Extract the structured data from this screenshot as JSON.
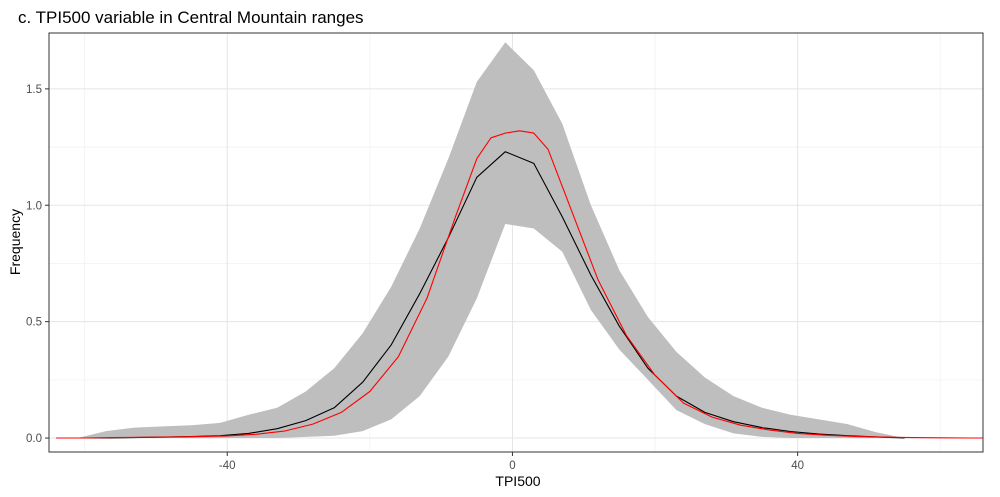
{
  "chart_data": {
    "type": "line",
    "title": "c. TPI500 variable in Central Mountain ranges",
    "xlabel": "TPI500",
    "ylabel": "Frequency",
    "xlim": [
      -65,
      66
    ],
    "ylim": [
      -0.06,
      1.74
    ],
    "x_ticks": [
      -40,
      0,
      40
    ],
    "x_tick_labels": [
      "-40",
      "0",
      "40"
    ],
    "y_ticks": [
      0.0,
      0.5,
      1.0,
      1.5
    ],
    "y_tick_labels": [
      "0.0",
      "0.5",
      "1.0",
      "1.5"
    ],
    "x_minor_ticks": [
      -60,
      -20,
      20,
      60
    ],
    "y_minor_ticks": [
      0.25,
      0.75,
      1.25
    ],
    "grid": true,
    "legend": "none",
    "band": {
      "color": "#bebebe",
      "x": [
        -61,
        -57,
        -53,
        -49,
        -45,
        -41,
        -37,
        -33,
        -29,
        -25,
        -21,
        -17,
        -13,
        -9,
        -5,
        -1,
        3,
        7,
        11,
        15,
        19,
        23,
        27,
        31,
        35,
        39,
        43,
        47,
        51,
        55
      ],
      "upper": [
        0.0,
        0.03,
        0.045,
        0.05,
        0.055,
        0.065,
        0.1,
        0.13,
        0.2,
        0.3,
        0.45,
        0.65,
        0.9,
        1.2,
        1.53,
        1.7,
        1.58,
        1.35,
        1.0,
        0.72,
        0.52,
        0.37,
        0.26,
        0.18,
        0.13,
        0.1,
        0.08,
        0.06,
        0.025,
        0.0
      ],
      "lower": [
        0.0,
        0.0,
        0.0,
        0.0,
        0.0,
        0.0,
        0.0,
        0.0,
        0.005,
        0.01,
        0.03,
        0.08,
        0.18,
        0.35,
        0.6,
        0.92,
        0.9,
        0.8,
        0.55,
        0.38,
        0.25,
        0.12,
        0.06,
        0.02,
        0.005,
        0.0,
        0.0,
        0.0,
        0.0,
        0.0
      ]
    },
    "series": [
      {
        "color": "#000000",
        "x": [
          -61,
          -57,
          -53,
          -49,
          -45,
          -41,
          -37,
          -33,
          -29,
          -25,
          -21,
          -17,
          -13,
          -9,
          -5,
          -1,
          3,
          7,
          11,
          15,
          19,
          23,
          27,
          31,
          35,
          39,
          43,
          47,
          51,
          55
        ],
        "y": [
          0.0,
          0.0,
          0.002,
          0.004,
          0.006,
          0.01,
          0.02,
          0.04,
          0.075,
          0.13,
          0.24,
          0.4,
          0.62,
          0.86,
          1.12,
          1.23,
          1.18,
          0.95,
          0.7,
          0.48,
          0.3,
          0.18,
          0.11,
          0.07,
          0.045,
          0.028,
          0.017,
          0.01,
          0.005,
          0.0
        ]
      },
      {
        "color": "#ff0000",
        "x": [
          -64,
          -60,
          -56,
          -52,
          -48,
          -44,
          -40,
          -36,
          -32,
          -28,
          -24,
          -20,
          -16,
          -12,
          -8,
          -5,
          -3,
          -1,
          1,
          3,
          5,
          8,
          12,
          16,
          20,
          24,
          28,
          32,
          36,
          40,
          44,
          48,
          52,
          56,
          60,
          64,
          66
        ],
        "y": [
          0.0,
          0.0,
          0.002,
          0.003,
          0.004,
          0.006,
          0.009,
          0.016,
          0.03,
          0.06,
          0.11,
          0.2,
          0.35,
          0.6,
          0.95,
          1.2,
          1.29,
          1.31,
          1.32,
          1.31,
          1.24,
          1.0,
          0.68,
          0.44,
          0.27,
          0.15,
          0.09,
          0.055,
          0.035,
          0.02,
          0.012,
          0.007,
          0.004,
          0.002,
          0.001,
          0.0,
          0.0
        ]
      }
    ]
  }
}
